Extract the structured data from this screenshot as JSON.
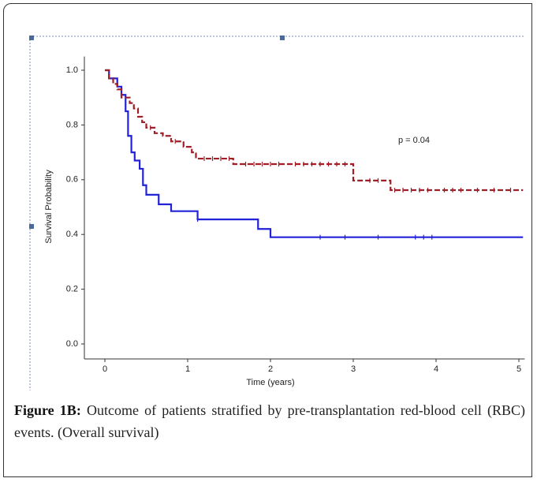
{
  "chart_data": {
    "type": "step",
    "xlabel": "Time (years)",
    "ylabel": "Survival Probability",
    "annotation": "p = 0.04",
    "xlim": [
      -0.25,
      5.07
    ],
    "xticks": [
      0,
      1,
      2,
      3,
      4,
      5
    ],
    "ylim": [
      -0.05,
      1.05
    ],
    "yticks": [
      {
        "value": 0,
        "label": "0.0"
      },
      {
        "value": 0.2,
        "label": "0.2"
      },
      {
        "value": 0.4,
        "label": "0.4"
      },
      {
        "value": 0.6,
        "label": "0.6"
      },
      {
        "value": 0.8,
        "label": "0.8"
      },
      {
        "value": 1,
        "label": "1.0"
      }
    ],
    "series": [
      {
        "color": "#2222d8",
        "dashed": false,
        "x": [
          0,
          0.05,
          0.15,
          0.2,
          0.25,
          0.28,
          0.32,
          0.36,
          0.42,
          0.46,
          0.5,
          0.65,
          0.8,
          1.12,
          1.85,
          2.0,
          5.05
        ],
        "values": [
          1.0,
          0.97,
          0.94,
          0.91,
          0.85,
          0.76,
          0.7,
          0.67,
          0.64,
          0.58,
          0.545,
          0.51,
          0.485,
          0.455,
          0.42,
          0.39,
          0.39
        ],
        "censor_x": [
          1.12,
          2.6,
          2.9,
          3.3,
          3.75,
          3.85,
          3.95
        ]
      },
      {
        "color": "#a01e28",
        "dashed": true,
        "x": [
          0,
          0.05,
          0.1,
          0.15,
          0.2,
          0.3,
          0.35,
          0.4,
          0.45,
          0.5,
          0.6,
          0.7,
          0.8,
          0.95,
          1.05,
          1.1,
          1.55,
          3.0,
          3.45,
          5.05
        ],
        "values": [
          1.0,
          0.97,
          0.95,
          0.93,
          0.9,
          0.88,
          0.86,
          0.83,
          0.81,
          0.79,
          0.77,
          0.76,
          0.74,
          0.72,
          0.7,
          0.677,
          0.657,
          0.597,
          0.562,
          0.562
        ],
        "censor_x": [
          0.55,
          0.85,
          1.2,
          1.3,
          1.4,
          1.5,
          1.7,
          1.8,
          1.9,
          2.0,
          2.1,
          2.3,
          2.4,
          2.5,
          2.6,
          2.7,
          2.8,
          2.9,
          3.2,
          3.3,
          3.5,
          3.6,
          3.7,
          3.8,
          3.9,
          4.1,
          4.2,
          4.3,
          4.5,
          4.7,
          4.9
        ]
      }
    ]
  },
  "caption": {
    "label": "Figure 1B:",
    "text": "Outcome of patients stratified by pre-transplantation red-blood cell (RBC) events. (Overall survival)"
  }
}
